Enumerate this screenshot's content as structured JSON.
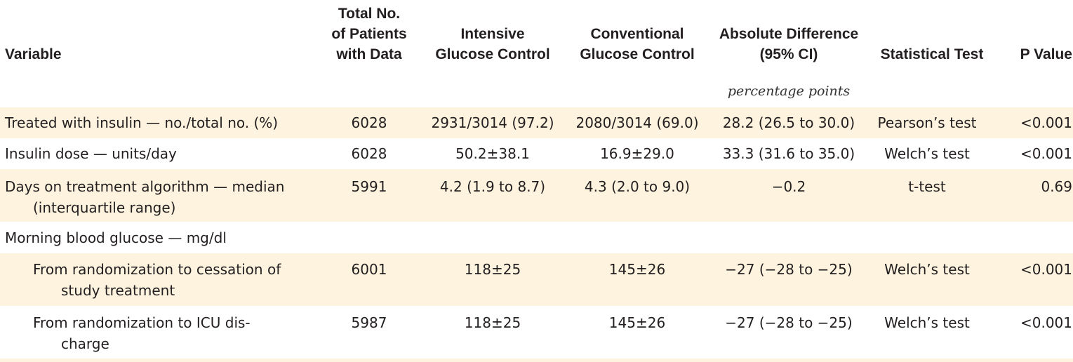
{
  "columns": {
    "variable": "Variable",
    "total": "Total No.\nof Patients\nwith Data",
    "intensive": "Intensive\nGlucose Control",
    "conventional": "Conventional\nGlucose Control",
    "difference": "Absolute Difference\n(95% CI)",
    "test": "Statistical Test",
    "p": "P Value"
  },
  "units_label": "percentage points",
  "rows": [
    {
      "variable": "Treated with insulin — no./total no. (%)",
      "variable2": "",
      "n": "6028",
      "intensive": "2931/3014 (97.2)",
      "conventional": "2080/3014 (69.0)",
      "difference": "28.2 (26.5 to 30.0)",
      "test": "Pearson’s test",
      "p": "<0.001"
    },
    {
      "variable": "Insulin dose — units/day",
      "variable2": "",
      "n": "6028",
      "intensive": "50.2±38.1",
      "conventional": "16.9±29.0",
      "difference": "33.3 (31.6 to 35.0)",
      "test": "Welch’s test",
      "p": "<0.001"
    },
    {
      "variable": "Days on treatment algorithm — median",
      "variable2": "(interquartile range)",
      "n": "5991",
      "intensive": "4.2 (1.9 to 8.7)",
      "conventional": "4.3 (2.0 to 9.0)",
      "difference": "−0.2",
      "test": "t-test",
      "p": "0.69"
    },
    {
      "variable": "Morning blood glucose — mg/dl",
      "variable2": "",
      "n": "",
      "intensive": "",
      "conventional": "",
      "difference": "",
      "test": "",
      "p": ""
    },
    {
      "variable": "From randomization to cessation of",
      "variable2": "study treatment",
      "n": "6001",
      "intensive": "118±25",
      "conventional": "145±26",
      "difference": "−27 (−28 to −25)",
      "test": "Welch’s test",
      "p": "<0.001"
    },
    {
      "variable": "From randomization to ICU dis-",
      "variable2": "charge",
      "n": "5987",
      "intensive": "118±25",
      "conventional": "145±26",
      "difference": "−27 (−28 to −25)",
      "test": "Welch’s test",
      "p": "<0.001"
    }
  ]
}
